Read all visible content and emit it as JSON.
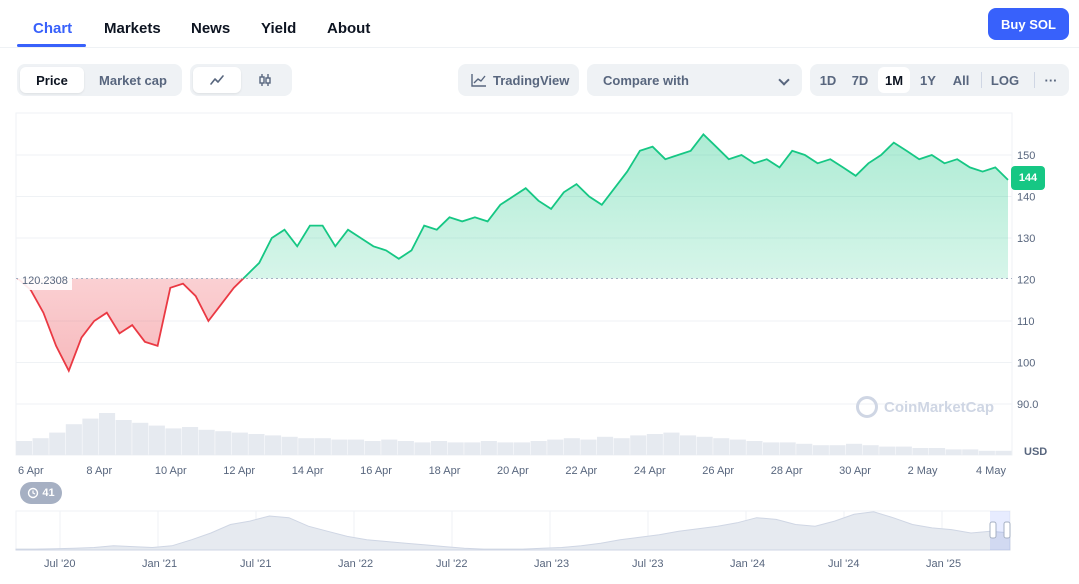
{
  "nav": {
    "tabs": [
      "Chart",
      "Markets",
      "News",
      "Yield",
      "About"
    ],
    "buy_label": "Buy SOL"
  },
  "toolbar": {
    "price_label": "Price",
    "marketcap_label": "Market cap",
    "tradingview_label": "TradingView",
    "compare_placeholder": "Compare with",
    "ranges": [
      "1D",
      "7D",
      "1M",
      "1Y",
      "All"
    ],
    "active_range": "1M",
    "log_label": "LOG",
    "more_label": "···"
  },
  "chart_data": {
    "type": "area",
    "title": "",
    "ylabel": "USD",
    "ylim": [
      87,
      160
    ],
    "yticks": [
      "150",
      "140",
      "130",
      "120",
      "110",
      "100",
      "90.0"
    ],
    "baseline": 120.2308,
    "baseline_label": "120.2308",
    "current_price_label": "144",
    "colors": {
      "up": "#16c784",
      "down": "#ea3943",
      "accent": "#3861fb"
    },
    "x_labels": [
      "6 Apr",
      "8 Apr",
      "10 Apr",
      "12 Apr",
      "14 Apr",
      "16 Apr",
      "18 Apr",
      "20 Apr",
      "22 Apr",
      "24 Apr",
      "26 Apr",
      "28 Apr",
      "30 Apr",
      "2 May",
      "4 May"
    ],
    "series": [
      {
        "x": [
          "6 Apr",
          "6.5 Apr",
          "7 Apr",
          "7.4 Apr",
          "7.7 Apr",
          "8 Apr",
          "8.3 Apr",
          "8.6 Apr",
          "9 Apr",
          "9.3 Apr",
          "9.6 Apr",
          "9.9 Apr",
          "10 Apr",
          "10.4 Apr",
          "10.8 Apr",
          "11.1 Apr",
          "11.5 Apr",
          "11.8 Apr",
          "12 Apr",
          "12.3 Apr",
          "12.6 Apr",
          "13 Apr",
          "13.3 Apr",
          "13.7 Apr",
          "14 Apr",
          "14.4 Apr",
          "14.8 Apr",
          "15.1 Apr",
          "15.5 Apr",
          "15.9 Apr",
          "16.2 Apr",
          "16.6 Apr",
          "17 Apr",
          "17.4 Apr",
          "17.8 Apr",
          "18.2 Apr",
          "18.6 Apr",
          "19 Apr",
          "19.4 Apr",
          "19.8 Apr",
          "20.2 Apr",
          "20.6 Apr",
          "21 Apr",
          "21.4 Apr",
          "21.8 Apr",
          "22.2 Apr",
          "22.6 Apr",
          "23 Apr",
          "23.4 Apr",
          "23.8 Apr",
          "24.2 Apr",
          "24.6 Apr",
          "25 Apr",
          "25.4 Apr",
          "25.8 Apr",
          "26.2 Apr",
          "26.6 Apr",
          "27 Apr",
          "27.4 Apr",
          "27.8 Apr",
          "28.2 Apr",
          "28.6 Apr",
          "29 Apr",
          "29.4 Apr",
          "29.8 Apr",
          "30.2 Apr",
          "30.6 Apr",
          "1 May",
          "1.4 May",
          "1.8 May",
          "2.2 May",
          "2.6 May",
          "3 May",
          "3.4 May",
          "3.8 May",
          "4.2 May",
          "4.6 May",
          "5 May",
          "5.3 May"
        ],
        "values": [
          120.2,
          117.5,
          112,
          104,
          98,
          106,
          110,
          112,
          107,
          109,
          105,
          104,
          118,
          119,
          116,
          110,
          114,
          118,
          121,
          124,
          130,
          132,
          128,
          133,
          133,
          128,
          132,
          130,
          128,
          127,
          125,
          127,
          133,
          132,
          135,
          134,
          135,
          134,
          138,
          140,
          142,
          139,
          137,
          141,
          143,
          140,
          138,
          142,
          146,
          151,
          152,
          149,
          150,
          151,
          155,
          152,
          149,
          150,
          148,
          149,
          147,
          151,
          150,
          148,
          149,
          147,
          145,
          148,
          150,
          153,
          151,
          149,
          150,
          148,
          149,
          147,
          146,
          147,
          144
        ]
      }
    ],
    "volume": [
      10,
      12,
      16,
      22,
      26,
      30,
      25,
      23,
      21,
      19,
      20,
      18,
      17,
      16,
      15,
      14,
      13,
      12,
      12,
      11,
      11,
      10,
      11,
      10,
      9,
      10,
      9,
      9,
      10,
      9,
      9,
      10,
      11,
      12,
      11,
      13,
      12,
      14,
      15,
      16,
      14,
      13,
      12,
      11,
      10,
      9,
      9,
      8,
      7,
      7,
      8,
      7,
      6,
      6,
      5,
      5,
      4,
      4,
      3,
      3
    ],
    "navigator": {
      "x_labels": [
        "Jul '20",
        "Jan '21",
        "Jul '21",
        "Jan '22",
        "Jul '22",
        "Jan '23",
        "Jul '23",
        "Jan '24",
        "Jul '24",
        "Jan '25"
      ],
      "values": [
        1,
        1,
        1.5,
        2,
        3,
        5,
        4,
        3,
        5,
        12,
        20,
        30,
        34,
        40,
        38,
        28,
        22,
        16,
        12,
        10,
        8,
        6,
        4,
        2,
        1,
        1,
        1,
        2,
        3,
        5,
        8,
        12,
        15,
        18,
        22,
        25,
        28,
        32,
        38,
        36,
        30,
        28,
        34,
        42,
        45,
        38,
        30,
        26,
        24,
        20,
        22,
        20
      ]
    }
  },
  "events_count": "41"
}
